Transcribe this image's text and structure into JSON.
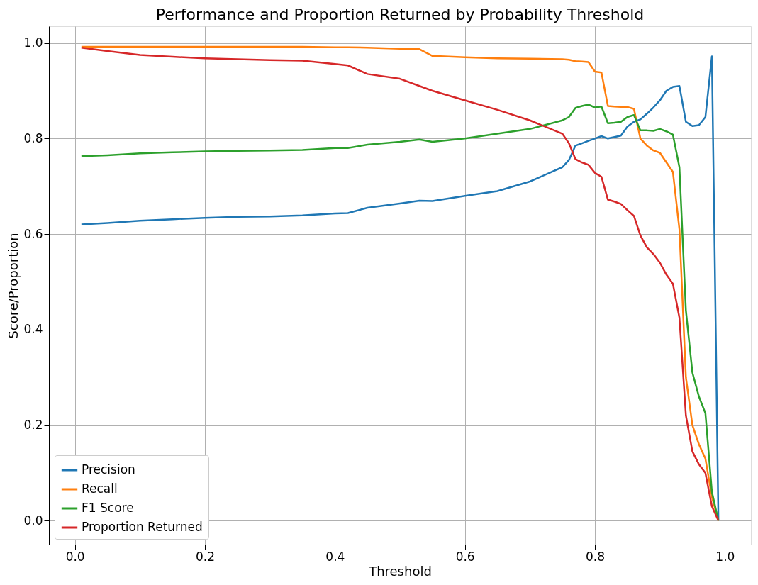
{
  "chart_data": {
    "type": "line",
    "title": "Performance and Proportion Returned by Probability Threshold",
    "xlabel": "Threshold",
    "ylabel": "Score/Proportion",
    "x": [
      0.01,
      0.05,
      0.1,
      0.15,
      0.2,
      0.25,
      0.3,
      0.35,
      0.4,
      0.42,
      0.45,
      0.5,
      0.53,
      0.55,
      0.6,
      0.65,
      0.7,
      0.75,
      0.76,
      0.77,
      0.78,
      0.79,
      0.8,
      0.81,
      0.82,
      0.83,
      0.84,
      0.85,
      0.86,
      0.87,
      0.88,
      0.89,
      0.9,
      0.91,
      0.92,
      0.93,
      0.94,
      0.95,
      0.96,
      0.97,
      0.98,
      0.99
    ],
    "series": [
      {
        "name": "Precision",
        "color": "#1f77b4",
        "values": [
          0.62,
          0.623,
          0.628,
          0.631,
          0.634,
          0.636,
          0.637,
          0.639,
          0.643,
          0.644,
          0.655,
          0.664,
          0.67,
          0.669,
          0.68,
          0.69,
          0.71,
          0.74,
          0.755,
          0.785,
          0.79,
          0.795,
          0.8,
          0.805,
          0.8,
          0.803,
          0.806,
          0.825,
          0.835,
          0.84,
          0.852,
          0.865,
          0.88,
          0.9,
          0.908,
          0.91,
          0.835,
          0.826,
          0.828,
          0.845,
          0.972,
          0.0
        ]
      },
      {
        "name": "Recall",
        "color": "#ff7f0e",
        "values": [
          0.992,
          0.992,
          0.992,
          0.992,
          0.992,
          0.992,
          0.992,
          0.992,
          0.991,
          0.991,
          0.99,
          0.988,
          0.987,
          0.973,
          0.97,
          0.968,
          0.967,
          0.966,
          0.965,
          0.962,
          0.961,
          0.96,
          0.94,
          0.938,
          0.868,
          0.867,
          0.866,
          0.866,
          0.862,
          0.8,
          0.785,
          0.775,
          0.77,
          0.75,
          0.73,
          0.61,
          0.3,
          0.2,
          0.16,
          0.13,
          0.05,
          0.0
        ]
      },
      {
        "name": "F1 Score",
        "color": "#2ca02c",
        "values": [
          0.763,
          0.765,
          0.769,
          0.771,
          0.773,
          0.774,
          0.775,
          0.776,
          0.78,
          0.78,
          0.787,
          0.793,
          0.798,
          0.793,
          0.8,
          0.81,
          0.82,
          0.838,
          0.845,
          0.864,
          0.868,
          0.871,
          0.865,
          0.867,
          0.832,
          0.833,
          0.835,
          0.845,
          0.849,
          0.817,
          0.817,
          0.816,
          0.82,
          0.815,
          0.808,
          0.74,
          0.44,
          0.31,
          0.26,
          0.225,
          0.06,
          0.0
        ]
      },
      {
        "name": "Proportion Returned",
        "color": "#d62728",
        "values": [
          0.99,
          0.983,
          0.975,
          0.971,
          0.968,
          0.966,
          0.964,
          0.963,
          0.956,
          0.953,
          0.935,
          0.925,
          0.91,
          0.9,
          0.88,
          0.86,
          0.838,
          0.81,
          0.79,
          0.757,
          0.75,
          0.745,
          0.728,
          0.72,
          0.672,
          0.668,
          0.663,
          0.65,
          0.638,
          0.597,
          0.572,
          0.558,
          0.54,
          0.515,
          0.496,
          0.425,
          0.22,
          0.145,
          0.118,
          0.1,
          0.03,
          0.0
        ]
      }
    ],
    "xlim": [
      -0.04,
      1.04
    ],
    "ylim": [
      -0.05,
      1.035
    ],
    "xticks": [
      {
        "value": 0,
        "label": "0.0"
      },
      0.2,
      0.4,
      0.6,
      0.8,
      {
        "value": 1,
        "label": "1.0"
      }
    ],
    "yticks": [
      {
        "value": 0,
        "label": "0.0"
      },
      0.2,
      0.4,
      0.6,
      0.8,
      {
        "value": 1,
        "label": "1.0"
      }
    ],
    "grid": true,
    "legend": "bottom left",
    "line_style": "solid",
    "marker": "none"
  }
}
